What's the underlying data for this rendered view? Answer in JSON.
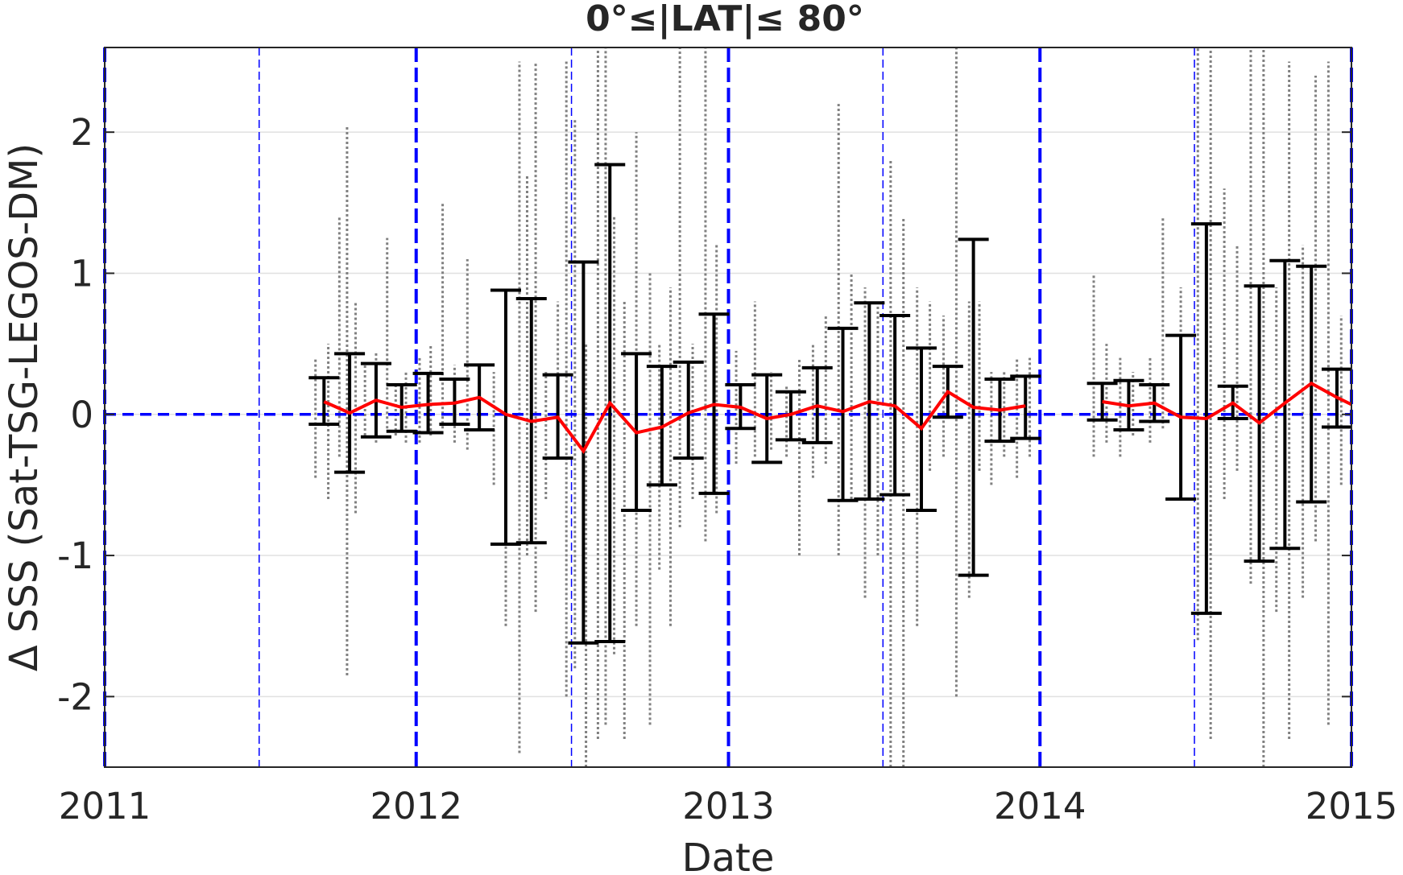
{
  "chart_data": {
    "type": "scatter",
    "title": "0°≤|LAT|≤ 80°",
    "xlabel": "Date",
    "ylabel": "Δ SSS (Sat-TSG-LEGOS-DM)",
    "xlim": [
      "2011-01-01",
      "2015-01-01"
    ],
    "ylim": [
      -2.5,
      2.6
    ],
    "xticks": [
      "2011",
      "2012",
      "2013",
      "2014",
      "2015"
    ],
    "yticks": [
      -2,
      -1,
      0,
      1,
      2
    ],
    "grid": true,
    "reference_line": {
      "y": 0,
      "style": "dashed",
      "color": "#0000ff"
    },
    "year_lines": [
      "2011-01-01",
      "2012-01-01",
      "2013-01-01",
      "2014-01-01",
      "2015-01-01"
    ],
    "midyear_lines": [
      "2011-07-01",
      "2012-07-01",
      "2013-07-01",
      "2014-07-01"
    ],
    "series": [
      {
        "style": "line",
        "color": "#ff0000",
        "x": [
          "2011-09-15",
          "2011-10-15",
          "2011-11-15",
          "2011-12-15",
          "2012-01-15",
          "2012-02-15",
          "2012-03-15",
          "2012-04-15",
          "2012-05-15",
          "2012-06-15",
          "2012-07-15",
          "2012-08-15",
          "2012-09-15",
          "2012-10-15",
          "2012-11-15",
          "2012-12-15",
          "2013-01-15",
          "2013-02-15",
          "2013-03-15",
          "2013-04-15",
          "2013-05-15",
          "2013-06-15",
          "2013-07-15",
          "2013-08-15",
          "2013-09-15",
          "2013-10-15",
          "2013-11-15",
          "2013-12-15",
          "2014-03-15",
          "2014-04-15",
          "2014-05-15",
          "2014-06-15",
          "2014-07-15",
          "2014-08-15",
          "2014-09-15",
          "2014-10-15",
          "2014-11-15",
          "2014-12-15",
          "2015-01-01"
        ],
        "y": [
          0.09,
          0.01,
          0.1,
          0.05,
          0.07,
          0.08,
          0.12,
          0.0,
          -0.05,
          -0.02,
          -0.26,
          0.08,
          -0.13,
          -0.09,
          0.01,
          0.07,
          0.05,
          -0.03,
          0.0,
          0.06,
          0.02,
          0.09,
          0.06,
          -0.1,
          0.16,
          0.05,
          0.03,
          0.06,
          0.09,
          0.06,
          0.08,
          -0.02,
          -0.03,
          0.08,
          -0.06,
          0.08,
          0.22,
          0.12,
          0.07
        ]
      },
      {
        "style": "errorbar",
        "color": "#000000",
        "x": [
          "2011-09-15",
          "2011-10-15",
          "2011-11-15",
          "2011-12-15",
          "2012-01-15",
          "2012-02-15",
          "2012-03-15",
          "2012-04-15",
          "2012-05-15",
          "2012-06-15",
          "2012-07-15",
          "2012-08-15",
          "2012-09-15",
          "2012-10-15",
          "2012-11-15",
          "2012-12-15",
          "2013-01-15",
          "2013-02-15",
          "2013-03-15",
          "2013-04-15",
          "2013-05-15",
          "2013-06-15",
          "2013-07-15",
          "2013-08-15",
          "2013-09-15",
          "2013-10-15",
          "2013-11-15",
          "2013-12-15",
          "2014-03-15",
          "2014-04-15",
          "2014-05-15",
          "2014-06-15",
          "2014-07-15",
          "2014-08-15",
          "2014-09-15",
          "2014-10-15",
          "2014-11-15",
          "2014-12-15"
        ],
        "low": [
          -0.07,
          -0.41,
          -0.16,
          -0.12,
          -0.13,
          -0.07,
          -0.11,
          -0.92,
          -0.91,
          -0.31,
          -1.62,
          -1.61,
          -0.68,
          -0.5,
          -0.31,
          -0.56,
          -0.1,
          -0.34,
          -0.18,
          -0.2,
          -0.61,
          -0.6,
          -0.57,
          -0.68,
          -0.02,
          -1.14,
          -0.19,
          -0.17,
          -0.04,
          -0.11,
          -0.05,
          -0.6,
          -1.41,
          -0.03,
          -1.04,
          -0.95,
          -0.62,
          -0.09
        ],
        "high": [
          0.26,
          0.43,
          0.36,
          0.21,
          0.29,
          0.25,
          0.35,
          0.88,
          0.82,
          0.28,
          1.08,
          1.77,
          0.43,
          0.34,
          0.37,
          0.71,
          0.21,
          0.28,
          0.16,
          0.33,
          0.61,
          0.79,
          0.7,
          0.47,
          0.34,
          1.24,
          0.25,
          0.27,
          0.22,
          0.24,
          0.21,
          0.56,
          1.35,
          0.2,
          0.91,
          1.09,
          1.05,
          0.32
        ]
      },
      {
        "style": "points",
        "color": "#808080",
        "x": [
          "2011-09-05",
          "2011-09-20",
          "2011-10-03",
          "2011-10-12",
          "2011-10-22",
          "2011-11-02",
          "2011-11-15",
          "2011-11-28",
          "2011-12-08",
          "2011-12-20",
          "2012-01-05",
          "2012-01-18",
          "2012-02-01",
          "2012-02-15",
          "2012-03-01",
          "2012-03-15",
          "2012-04-01",
          "2012-04-15",
          "2012-05-01",
          "2012-05-10",
          "2012-05-20",
          "2012-06-01",
          "2012-06-15",
          "2012-06-25",
          "2012-07-05",
          "2012-07-18",
          "2012-08-01",
          "2012-08-10",
          "2012-08-20",
          "2012-09-01",
          "2012-09-15",
          "2012-10-01",
          "2012-10-12",
          "2012-10-25",
          "2012-11-05",
          "2012-11-20",
          "2012-12-05",
          "2012-12-18",
          "2013-01-10",
          "2013-02-01",
          "2013-02-20",
          "2013-03-10",
          "2013-03-25",
          "2013-04-10",
          "2013-04-25",
          "2013-05-10",
          "2013-05-25",
          "2013-06-10",
          "2013-06-25",
          "2013-07-10",
          "2013-07-25",
          "2013-08-10",
          "2013-08-25",
          "2013-09-10",
          "2013-09-25",
          "2013-10-10",
          "2013-10-22",
          "2013-11-05",
          "2013-11-20",
          "2013-12-05",
          "2013-12-20",
          "2014-03-05",
          "2014-03-20",
          "2014-04-05",
          "2014-04-20",
          "2014-05-10",
          "2014-05-25",
          "2014-06-15",
          "2014-07-05",
          "2014-07-20",
          "2014-08-05",
          "2014-08-20",
          "2014-09-05",
          "2014-09-20",
          "2014-10-05",
          "2014-10-20",
          "2014-11-05",
          "2014-11-20",
          "2014-12-05",
          "2014-12-20"
        ],
        "low": [
          -0.45,
          -0.6,
          -0.3,
          -1.85,
          -0.7,
          -0.15,
          -0.2,
          -0.1,
          -0.15,
          -0.2,
          -0.2,
          -0.15,
          -0.1,
          -0.2,
          -0.25,
          -0.1,
          -0.5,
          -1.5,
          -2.4,
          -1.0,
          -1.4,
          -0.6,
          -0.3,
          -2.0,
          -1.8,
          -2.5,
          -2.3,
          -2.2,
          -1.7,
          -2.3,
          -1.5,
          -2.2,
          -1.1,
          -1.5,
          -0.8,
          -0.6,
          -0.9,
          -0.7,
          -0.35,
          -0.3,
          -0.25,
          -0.3,
          -1.0,
          -0.45,
          -0.35,
          -1.0,
          -0.6,
          -1.3,
          -1.0,
          -2.5,
          -2.5,
          -1.5,
          -0.4,
          -0.3,
          -2.0,
          -1.3,
          -0.4,
          -0.5,
          -0.3,
          -0.45,
          -0.3,
          -0.3,
          -0.2,
          -0.3,
          -0.15,
          -0.2,
          -0.1,
          -0.1,
          -1.6,
          -2.3,
          -0.6,
          -0.4,
          -1.2,
          -2.5,
          -1.4,
          -2.3,
          -1.3,
          -0.9,
          -2.2,
          -0.5
        ],
        "high": [
          0.4,
          0.5,
          1.4,
          2.05,
          0.8,
          0.35,
          0.45,
          1.25,
          0.2,
          0.3,
          0.4,
          0.5,
          1.5,
          0.35,
          1.1,
          0.3,
          0.3,
          0.5,
          2.5,
          1.7,
          2.5,
          0.3,
          0.8,
          2.5,
          2.1,
          0.5,
          2.6,
          2.6,
          1.4,
          0.8,
          2.0,
          1.0,
          0.5,
          0.9,
          2.6,
          0.5,
          2.6,
          1.2,
          0.45,
          0.8,
          0.3,
          0.2,
          0.4,
          0.5,
          0.7,
          2.2,
          1.0,
          0.9,
          0.8,
          1.8,
          1.4,
          0.9,
          0.8,
          0.7,
          2.6,
          0.8,
          0.8,
          0.3,
          0.3,
          0.4,
          0.4,
          1.0,
          0.5,
          0.4,
          0.3,
          0.4,
          1.4,
          0.9,
          2.6,
          2.6,
          1.6,
          1.2,
          2.6,
          2.6,
          0.9,
          2.5,
          1.2,
          2.4,
          2.5,
          0.7
        ]
      }
    ]
  }
}
